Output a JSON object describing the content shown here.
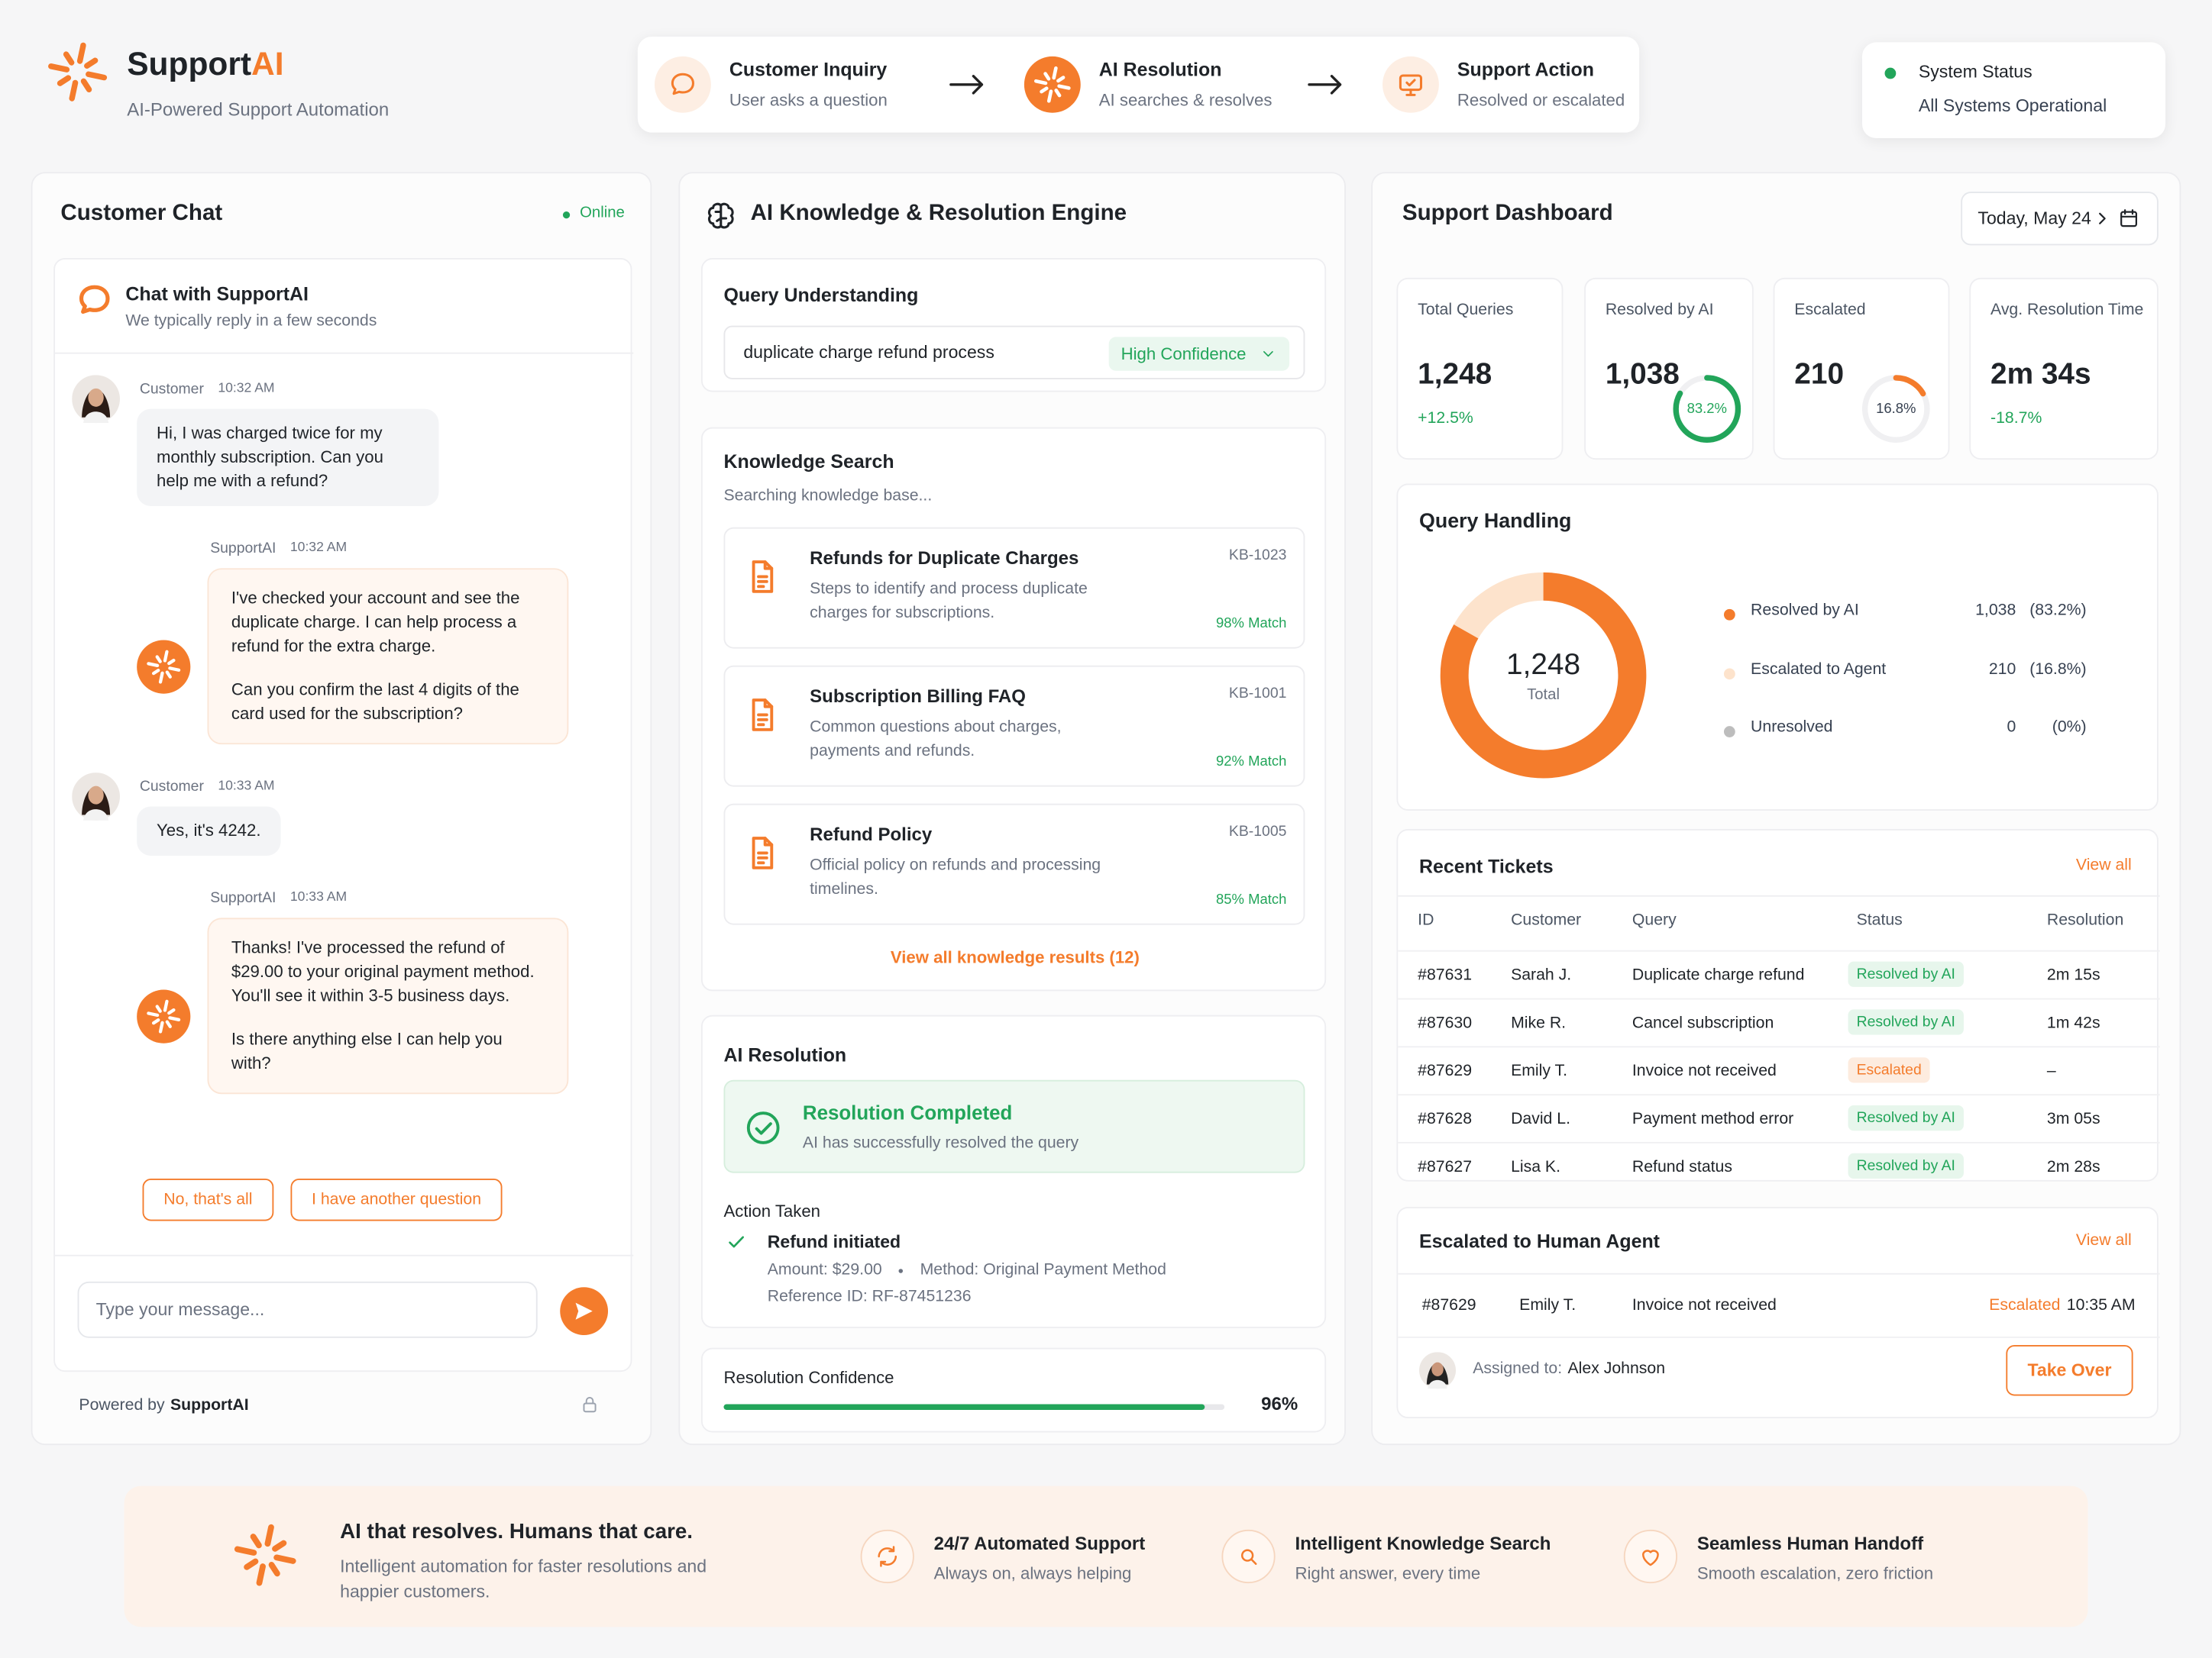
{
  "header": {
    "brand_prefix": "Support",
    "brand_suffix": "AI",
    "tagline": "AI-Powered Support Automation"
  },
  "flow": [
    {
      "title": "Customer Inquiry",
      "subtitle": "User asks a question"
    },
    {
      "title": "AI Resolution",
      "subtitle": "AI searches & resolves"
    },
    {
      "title": "Support Action",
      "subtitle": "Resolved or escalated"
    }
  ],
  "system_status": {
    "title": "System Status",
    "subtitle": "All Systems Operational"
  },
  "chat": {
    "title": "Customer Chat",
    "status": "Online",
    "widget_title": "Chat with SupportAI",
    "widget_subtitle": "We typically reply in a few seconds",
    "messages": [
      {
        "sender": "Customer",
        "time": "10:32 AM",
        "paragraphs": [
          "Hi, I was charged twice for my monthly subscription. Can you help me with a refund?"
        ]
      },
      {
        "sender": "SupportAI",
        "time": "10:32 AM",
        "paragraphs": [
          "I've checked your account and see the duplicate charge. I can help process a refund for the extra charge.",
          "Can you confirm the last 4 digits of the card used for the subscription?"
        ]
      },
      {
        "sender": "Customer",
        "time": "10:33 AM",
        "paragraphs": [
          "Yes, it's 4242."
        ]
      },
      {
        "sender": "SupportAI",
        "time": "10:33 AM",
        "paragraphs": [
          "Thanks! I've processed the refund of $29.00 to your original payment method. You'll see it within 3-5 business days.",
          "Is there anything else I can help you with?"
        ]
      }
    ],
    "quick_replies": [
      "No, that's all",
      "I have another question"
    ],
    "placeholder": "Type your message...",
    "footer_prefix": "Powered by",
    "footer_brand": "SupportAI"
  },
  "engine": {
    "title": "AI Knowledge & Resolution Engine",
    "query_understanding": {
      "title": "Query Understanding",
      "query": "duplicate charge refund process",
      "confidence": "High Confidence"
    },
    "knowledge_search": {
      "title": "Knowledge Search",
      "status": "Searching knowledge base...",
      "results": [
        {
          "title": "Refunds for Duplicate Charges",
          "id": "KB-1023",
          "description": "Steps to identify and process duplicate charges for subscriptions.",
          "match": "98% Match"
        },
        {
          "title": "Subscription Billing FAQ",
          "id": "KB-1001",
          "description": "Common questions about charges, payments and refunds.",
          "match": "92% Match"
        },
        {
          "title": "Refund Policy",
          "id": "KB-1005",
          "description": "Official policy on refunds and processing timelines.",
          "match": "85% Match"
        }
      ],
      "view_all": "View all knowledge results (12)"
    },
    "resolution": {
      "title": "AI Resolution",
      "status_title": "Resolution Completed",
      "status_text": "AI has successfully resolved the query",
      "action_label": "Action Taken",
      "action": "Refund initiated",
      "amount": "Amount: $29.00",
      "method": "Method: Original Payment Method",
      "reference": "Reference ID: RF-87451236"
    },
    "confidence": {
      "label": "Resolution Confidence",
      "value": 96,
      "value_label": "96%"
    }
  },
  "dashboard": {
    "title": "Support Dashboard",
    "date": "Today, May 24",
    "stats": [
      {
        "label": "Total Queries",
        "value": "1,248",
        "change": "+12.5%"
      },
      {
        "label": "Resolved by AI",
        "value": "1,038",
        "ring": 83.2,
        "ring_label": "83.2%"
      },
      {
        "label": "Escalated",
        "value": "210",
        "ring": 16.8,
        "ring_label": "16.8%"
      },
      {
        "label": "Avg. Resolution Time",
        "value": "2m 34s",
        "change": "-18.7%"
      }
    ],
    "query_handling": {
      "title": "Query Handling",
      "total": "1,248",
      "total_label": "Total",
      "items": [
        {
          "name": "Resolved by AI",
          "count": "1,038",
          "percent": 83.2,
          "percent_label": "(83.2%)",
          "color": "#f47c2c"
        },
        {
          "name": "Escalated to Agent",
          "count": "210",
          "percent": 16.8,
          "percent_label": "(16.8%)",
          "color": "#fde3cc"
        },
        {
          "name": "Unresolved",
          "count": "0",
          "percent": 0,
          "percent_label": "(0%)",
          "color": "#bdbdbd"
        }
      ]
    },
    "recent_tickets": {
      "title": "Recent Tickets",
      "view_all": "View all",
      "columns": [
        "ID",
        "Customer",
        "Query",
        "Status",
        "Resolution"
      ],
      "rows": [
        [
          "#87631",
          "Sarah J.",
          "Duplicate charge refund",
          "Resolved by AI",
          "2m 15s"
        ],
        [
          "#87630",
          "Mike R.",
          "Cancel subscription",
          "Resolved by AI",
          "1m 42s"
        ],
        [
          "#87629",
          "Emily T.",
          "Invoice not received",
          "Escalated",
          "–"
        ],
        [
          "#87628",
          "David L.",
          "Payment method error",
          "Resolved by AI",
          "3m 05s"
        ],
        [
          "#87627",
          "Lisa K.",
          "Refund status",
          "Resolved by AI",
          "2m 28s"
        ]
      ]
    },
    "escalated": {
      "title": "Escalated to Human Agent",
      "view_all": "View all",
      "row": [
        "#87629",
        "Emily T.",
        "Invoice not received",
        "Escalated",
        "10:35 AM"
      ],
      "assigned_label": "Assigned to:",
      "agent": "Alex Johnson",
      "button": "Take Over"
    }
  },
  "banner": {
    "title": "AI that resolves. Humans that care.",
    "subtitle": "Intelligent automation for faster resolutions and happier customers.",
    "features": [
      {
        "title": "24/7 Automated Support",
        "subtitle": "Always on, always helping"
      },
      {
        "title": "Intelligent Knowledge Search",
        "subtitle": "Right answer, every time"
      },
      {
        "title": "Seamless Human Handoff",
        "subtitle": "Smooth escalation, zero friction"
      }
    ]
  }
}
